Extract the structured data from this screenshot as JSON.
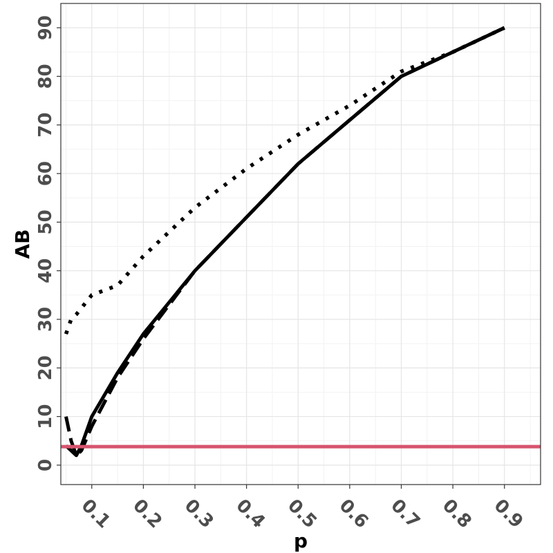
{
  "chart_data": {
    "type": "line",
    "xlabel": "p",
    "ylabel": "AB",
    "xlim": [
      0.04,
      0.97
    ],
    "ylim": [
      -4,
      95
    ],
    "xticks": [
      0.1,
      0.2,
      0.3,
      0.4,
      0.5,
      0.6,
      0.7,
      0.8,
      0.9
    ],
    "xtick_labels": [
      "0.1",
      "0.2",
      "0.3",
      "0.4",
      "0.5",
      "0.6",
      "0.7",
      "0.8",
      "0.9"
    ],
    "yticks": [
      0,
      10,
      20,
      30,
      40,
      50,
      60,
      70,
      80,
      90
    ],
    "ytick_labels": [
      "0",
      "10",
      "20",
      "30",
      "40",
      "50",
      "60",
      "70",
      "80",
      "90"
    ],
    "grid": true,
    "legend": "none",
    "series": [
      {
        "style": "solid",
        "color": "#000000",
        "x": [
          0.05,
          0.06,
          0.07,
          0.08,
          0.1,
          0.15,
          0.2,
          0.3,
          0.4,
          0.5,
          0.6,
          0.7,
          0.8,
          0.9
        ],
        "y": [
          4,
          3,
          2,
          4,
          10,
          19,
          27,
          40,
          51,
          62,
          71,
          80,
          85,
          90
        ]
      },
      {
        "style": "dashed",
        "color": "#000000",
        "x": [
          0.05,
          0.06,
          0.07,
          0.08,
          0.1,
          0.15,
          0.2,
          0.3,
          0.4,
          0.5,
          0.6,
          0.7,
          0.8,
          0.9
        ],
        "y": [
          10,
          5,
          2,
          3,
          8,
          18,
          26,
          40,
          51,
          62,
          71,
          80,
          85,
          90
        ]
      },
      {
        "style": "dotted",
        "color": "#000000",
        "x": [
          0.05,
          0.06,
          0.07,
          0.1,
          0.15,
          0.2,
          0.3,
          0.4,
          0.5,
          0.6,
          0.7,
          0.8,
          0.9
        ],
        "y": [
          27,
          30,
          31,
          35,
          37,
          43,
          53,
          61,
          68,
          74,
          81,
          85,
          90
        ]
      }
    ],
    "reference_line": {
      "y": 3.8,
      "color": "#d6546e"
    }
  }
}
